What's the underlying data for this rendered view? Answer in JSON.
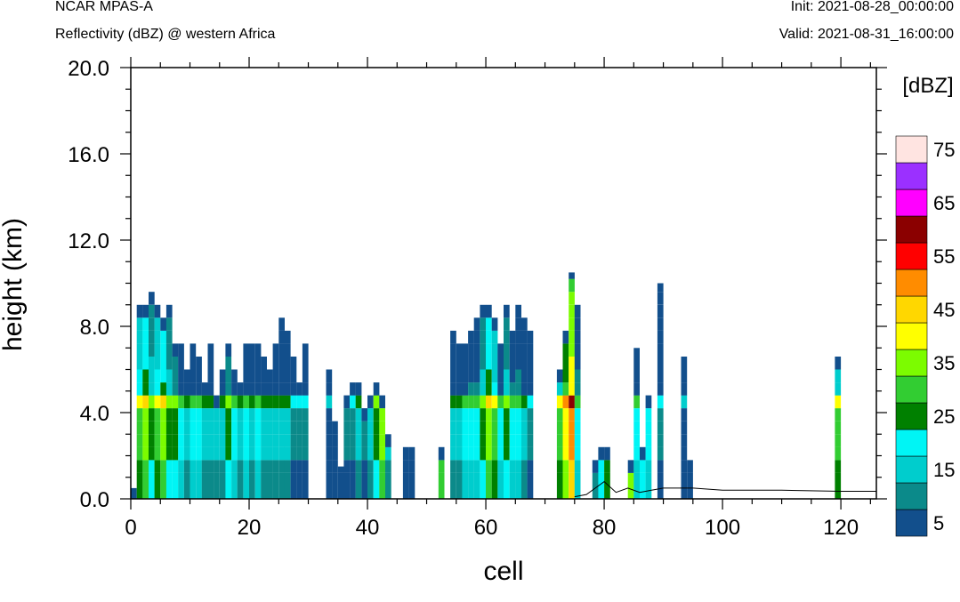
{
  "header": {
    "model": "NCAR MPAS-A",
    "field": "Reflectivity (dBZ) @ western Africa",
    "init": "Init: 2021-08-28_00:00:00",
    "valid": "Valid: 2021-08-31_16:00:00"
  },
  "chart_data": {
    "type": "heatmap",
    "xlabel": "cell",
    "ylabel": "height (km)",
    "xlim": [
      0,
      126
    ],
    "ylim": [
      0,
      20
    ],
    "x_ticks": [
      0,
      20,
      40,
      60,
      80,
      100,
      120
    ],
    "x_tick_labels": [
      "0",
      "20",
      "40",
      "60",
      "80",
      "100",
      "120"
    ],
    "y_ticks": [
      0,
      4,
      8,
      12,
      16,
      20
    ],
    "y_tick_labels": [
      "0.0",
      "4.0",
      "8.0",
      "12.0",
      "16.0",
      "20.0"
    ],
    "colorbar": {
      "title": "[dBZ]",
      "levels": [
        5,
        10,
        15,
        20,
        25,
        30,
        35,
        40,
        45,
        50,
        55,
        60,
        65,
        70,
        75
      ],
      "labels": [
        "5",
        "15",
        "25",
        "35",
        "45",
        "55",
        "65",
        "75"
      ],
      "colors": [
        "#124f8c",
        "#0b8a8a",
        "#00cdcd",
        "#00f5f5",
        "#008000",
        "#32cd32",
        "#7cfc00",
        "#ffff00",
        "#ffd700",
        "#ff8c00",
        "#ff0000",
        "#8b0000",
        "#ff00ff",
        "#9b30ff",
        "#ffe4e1"
      ]
    },
    "columns": [
      {
        "x": 0,
        "top": 0.5,
        "core": 0
      },
      {
        "x": 1,
        "top": 9.2,
        "core": 35
      },
      {
        "x": 2,
        "top": 9.2,
        "core": 40
      },
      {
        "x": 3,
        "top": 9.8,
        "core": 30
      },
      {
        "x": 4,
        "top": 9.2,
        "core": 35
      },
      {
        "x": 5,
        "top": 8.6,
        "core": 40
      },
      {
        "x": 6,
        "top": 9.2,
        "core": 30
      },
      {
        "x": 7,
        "top": 7.4,
        "core": 30
      },
      {
        "x": 8,
        "top": 7.4,
        "core": 25
      },
      {
        "x": 9,
        "top": 6.2,
        "core": 20
      },
      {
        "x": 10,
        "top": 7.4,
        "core": 25
      },
      {
        "x": 11,
        "top": 6.8,
        "core": 25
      },
      {
        "x": 12,
        "top": 5.6,
        "core": 20
      },
      {
        "x": 13,
        "top": 7.4,
        "core": 20
      },
      {
        "x": 14,
        "top": 5.0,
        "core": 20
      },
      {
        "x": 15,
        "top": 6.2,
        "core": 20
      },
      {
        "x": 16,
        "top": 7.4,
        "core": 30
      },
      {
        "x": 17,
        "top": 6.2,
        "core": 25
      },
      {
        "x": 18,
        "top": 5.6,
        "core": 20
      },
      {
        "x": 19,
        "top": 7.4,
        "core": 25
      },
      {
        "x": 20,
        "top": 7.4,
        "core": 20
      },
      {
        "x": 21,
        "top": 7.4,
        "core": 25
      },
      {
        "x": 22,
        "top": 6.8,
        "core": 20
      },
      {
        "x": 23,
        "top": 6.2,
        "core": 20
      },
      {
        "x": 24,
        "top": 7.4,
        "core": 20
      },
      {
        "x": 25,
        "top": 8.6,
        "core": 20
      },
      {
        "x": 26,
        "top": 8.0,
        "core": 20
      },
      {
        "x": 27,
        "top": 6.8,
        "core": 15
      },
      {
        "x": 28,
        "top": 5.6,
        "core": 15
      },
      {
        "x": 29,
        "top": 7.4,
        "core": 15
      },
      {
        "x": 33,
        "top": 6.2,
        "core": 10
      },
      {
        "x": 34,
        "top": 3.8,
        "core": 10
      },
      {
        "x": 35,
        "top": 1.5,
        "core": 10
      },
      {
        "x": 36,
        "top": 5.0,
        "core": 15
      },
      {
        "x": 37,
        "top": 5.6,
        "core": 15
      },
      {
        "x": 38,
        "top": 5.6,
        "core": 20
      },
      {
        "x": 39,
        "top": 4.4,
        "core": 15
      },
      {
        "x": 40,
        "top": 5.0,
        "core": 20
      },
      {
        "x": 41,
        "top": 5.6,
        "core": 30
      },
      {
        "x": 42,
        "top": 5.0,
        "core": 40
      },
      {
        "x": 43,
        "top": 3.2,
        "core": 20
      },
      {
        "x": 46,
        "top": 2.6,
        "core": 15
      },
      {
        "x": 47,
        "top": 2.6,
        "core": 10
      },
      {
        "x": 52,
        "top": 2.6,
        "core": 40
      },
      {
        "x": 54,
        "top": 8.0,
        "core": 20
      },
      {
        "x": 55,
        "top": 7.4,
        "core": 20
      },
      {
        "x": 56,
        "top": 7.4,
        "core": 25
      },
      {
        "x": 57,
        "top": 8.0,
        "core": 25
      },
      {
        "x": 58,
        "top": 8.6,
        "core": 25
      },
      {
        "x": 59,
        "top": 9.2,
        "core": 30
      },
      {
        "x": 60,
        "top": 9.2,
        "core": 40
      },
      {
        "x": 61,
        "top": 8.6,
        "core": 35
      },
      {
        "x": 62,
        "top": 7.4,
        "core": 25
      },
      {
        "x": 63,
        "top": 9.2,
        "core": 30
      },
      {
        "x": 64,
        "top": 8.0,
        "core": 25
      },
      {
        "x": 65,
        "top": 9.2,
        "core": 25
      },
      {
        "x": 66,
        "top": 8.6,
        "core": 20
      },
      {
        "x": 67,
        "top": 8.0,
        "core": 15
      },
      {
        "x": 72,
        "top": 6.2,
        "core": 35
      },
      {
        "x": 73,
        "top": 8.0,
        "core": 45
      },
      {
        "x": 74,
        "top": 10.5,
        "core": 55
      },
      {
        "x": 75,
        "top": 9.2,
        "core": 25
      },
      {
        "x": 78,
        "top": 2.0,
        "core": 20
      },
      {
        "x": 79,
        "top": 2.6,
        "core": 30
      },
      {
        "x": 80,
        "top": 2.6,
        "core": 35
      },
      {
        "x": 84,
        "top": 2.0,
        "core": 45
      },
      {
        "x": 85,
        "top": 7.0,
        "core": 25
      },
      {
        "x": 86,
        "top": 2.6,
        "core": 30
      },
      {
        "x": 87,
        "top": 5.0,
        "core": 25
      },
      {
        "x": 89,
        "top": 10.0,
        "core": 15
      },
      {
        "x": 93,
        "top": 6.8,
        "core": 10
      },
      {
        "x": 94,
        "top": 1.8,
        "core": 15
      },
      {
        "x": 119,
        "top": 6.8,
        "core": 35
      }
    ],
    "terrain": [
      [
        75,
        0.1
      ],
      [
        77,
        0.2
      ],
      [
        80,
        0.8
      ],
      [
        82,
        0.3
      ],
      [
        84,
        0.5
      ],
      [
        86,
        0.3
      ],
      [
        88,
        0.4
      ],
      [
        90,
        0.5
      ],
      [
        95,
        0.5
      ],
      [
        100,
        0.4
      ],
      [
        110,
        0.4
      ],
      [
        120,
        0.35
      ],
      [
        126,
        0.35
      ]
    ]
  }
}
